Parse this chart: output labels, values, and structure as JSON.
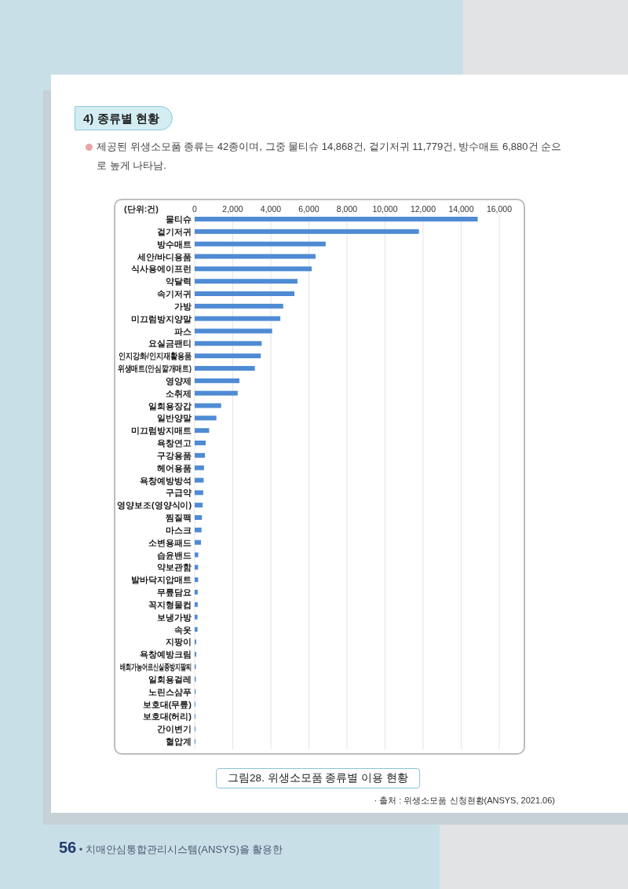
{
  "chart_data": {
    "type": "bar",
    "orientation": "horizontal",
    "title": "4) 종류별 현황",
    "subtitle": "제공된 위생소모품 종류는 42종이며, 그중 물티슈 14,868건, 겉기저귀 11,779건, 방수매트 6,880건 순으로 높게 나타남.",
    "xlabel": "(단위:건)",
    "categories": [
      "물티슈",
      "겉기저귀",
      "방수매트",
      "세안/바디용품",
      "식사용에이프런",
      "약달력",
      "속기저귀",
      "가방",
      "미끄럼방지양말",
      "파스",
      "요실금팬티",
      "인지강화/인지재활용품",
      "위생매트(안심깔개매트)",
      "영양제",
      "소취제",
      "일회용장갑",
      "일반양말",
      "미끄럼방지매트",
      "욕창연고",
      "구강용품",
      "헤어용품",
      "욕창예방방석",
      "구급약",
      "영양보조(영양식이)",
      "찜질팩",
      "마스크",
      "소변용패드",
      "습윤밴드",
      "약보관함",
      "발바닥지압매트",
      "무릎담요",
      "꼭지형물컵",
      "보냉가방",
      "속옷",
      "지팡이",
      "욕창예방크림",
      "배회가능어르신실종방지팔찌",
      "일회용걸레",
      "노린스샴푸",
      "보호대(무릎)",
      "보호대(허리)",
      "간이변기",
      "혈압계"
    ],
    "values": [
      14868,
      11779,
      6880,
      6350,
      6150,
      5400,
      5240,
      4650,
      4500,
      4070,
      3520,
      3470,
      3160,
      2350,
      2260,
      1390,
      1140,
      760,
      580,
      540,
      490,
      470,
      450,
      420,
      380,
      360,
      330,
      190,
      180,
      180,
      160,
      160,
      150,
      150,
      80,
      80,
      60,
      60,
      50,
      40,
      40,
      40,
      40
    ],
    "color": "#4f8bd4",
    "xlim": [
      0,
      16000
    ],
    "xticks": [
      0,
      {
        "value": 2000,
        "label": "2,000"
      },
      {
        "value": 4000,
        "label": "4,000"
      },
      {
        "value": 6000,
        "label": "6,000"
      },
      {
        "value": 8000,
        "label": "8,000"
      },
      {
        "value": 10000,
        "label": "10,000"
      },
      {
        "value": 12000,
        "label": "12,000"
      },
      {
        "value": 14000,
        "label": "14,000"
      },
      {
        "value": 16000,
        "label": "16,000"
      }
    ],
    "grid": "x",
    "annotations": [
      "그림28. 위생소모품 종류별 이용 현황",
      "· 출처 : 위생소모품 신청현황(ANSYS, 2021.06)",
      "56 • 치매안심통합관리시스템(ANSYS)을 활용한"
    ]
  }
}
